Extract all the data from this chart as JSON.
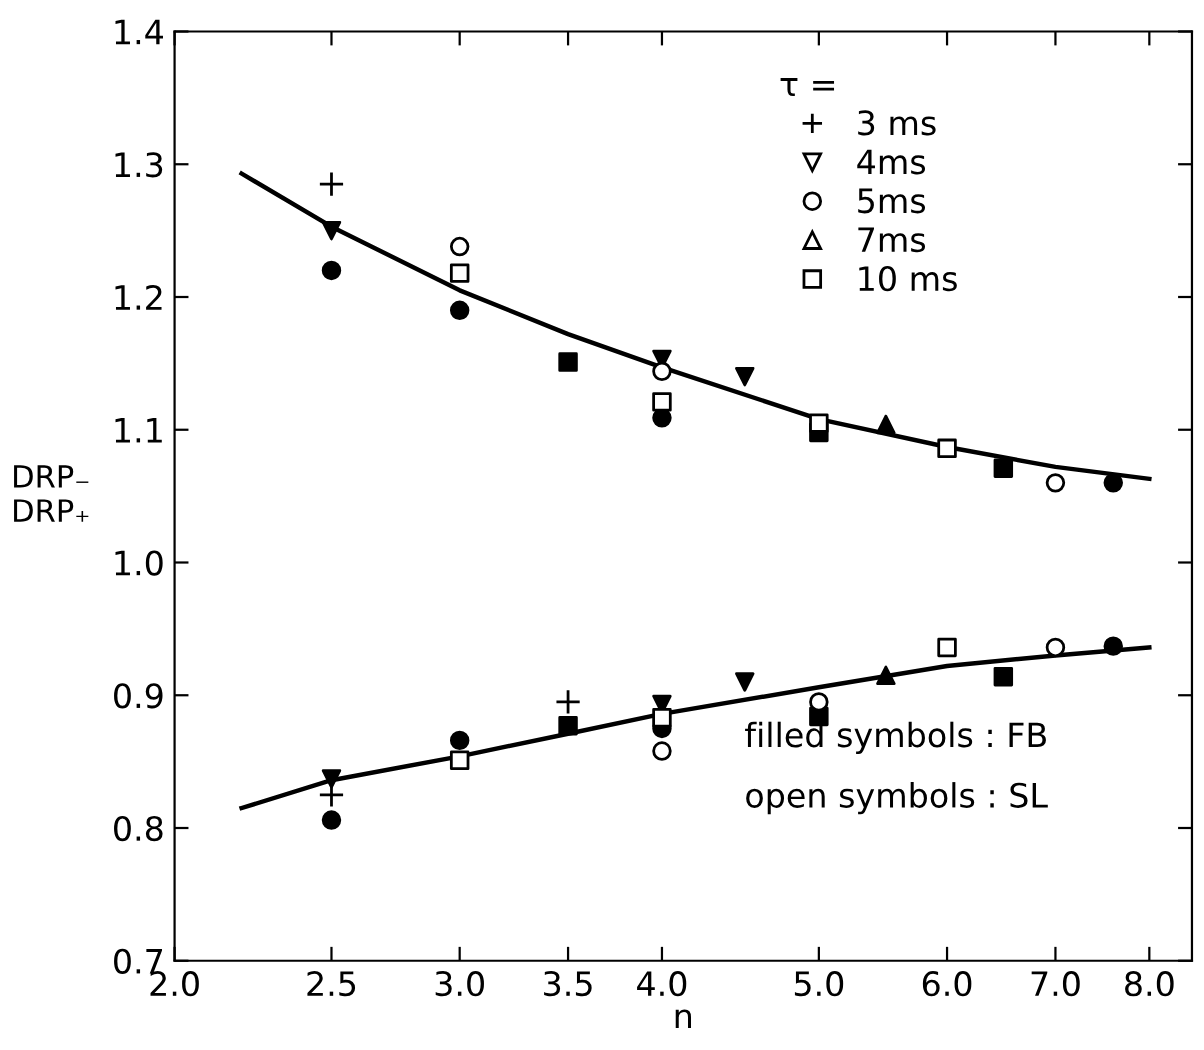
{
  "chart_data": {
    "type": "scatter",
    "xlabel": "n",
    "ylabel": "DRP₋\nDRP₊",
    "legend_title": "τ =",
    "log": "x",
    "xlim": [
      2.0,
      8.5
    ],
    "xticks": [
      {
        "value": 2,
        "label": "2.0"
      },
      2.5,
      {
        "value": 3,
        "label": "3.0"
      },
      3.5,
      {
        "value": 4,
        "label": "4.0"
      },
      {
        "value": 5,
        "label": "5.0"
      },
      {
        "value": 6,
        "label": "6.0"
      },
      {
        "value": 7,
        "label": "7.0"
      },
      {
        "value": 8,
        "label": "8.0"
      }
    ],
    "ylim": [
      0.7,
      1.4
    ],
    "yticks": [
      0.7,
      0.8,
      0.9,
      {
        "value": 1,
        "label": "1.0"
      },
      1.1,
      1.2,
      1.3,
      1.4
    ],
    "grid": false,
    "legend": "top right",
    "annotations": [
      "filled symbols : FB",
      "open symbols : SL"
    ],
    "series": [
      {
        "name": "3 ms",
        "marker": "plus",
        "color": "#000000",
        "x": [
          2.5,
          2.5,
          3.5
        ],
        "values": [
          1.285,
          0.825,
          0.895
        ]
      },
      {
        "name": "4ms",
        "marker": "triangle-down",
        "color": "#ffffff"
      },
      {
        "name": "5ms",
        "marker": "circle",
        "color": "#ffffff",
        "x": [
          3.0,
          4.0,
          7.0,
          4.0,
          5.0,
          7.0
        ],
        "values": [
          1.238,
          1.144,
          1.06,
          0.858,
          0.895,
          0.936
        ]
      },
      {
        "name": "7ms",
        "marker": "triangle",
        "color": "#ffffff"
      },
      {
        "name": "10 ms",
        "marker": "square",
        "color": "#ffffff",
        "x": [
          3.0,
          4.0,
          5.0,
          6.0,
          3.0,
          4.0,
          6.0
        ],
        "values": [
          1.218,
          1.121,
          1.105,
          1.086,
          0.851,
          0.883,
          0.936
        ]
      },
      {
        "marker": "triangle-down",
        "color": "#000000",
        "x": [
          2.5,
          4.0,
          4.5,
          2.5,
          4.0,
          4.5
        ],
        "values": [
          1.25,
          1.153,
          1.14,
          0.837,
          0.893,
          0.91
        ]
      },
      {
        "marker": "circle",
        "color": "#000000",
        "x": [
          2.5,
          3.0,
          4.0,
          7.6,
          2.5,
          3.0,
          4.0,
          7.6
        ],
        "values": [
          1.22,
          1.19,
          1.109,
          1.06,
          0.806,
          0.866,
          0.875,
          0.937
        ]
      },
      {
        "marker": "triangle",
        "color": "#000000",
        "x": [
          5.5,
          5.5
        ],
        "values": [
          1.104,
          0.915
        ]
      },
      {
        "marker": "square",
        "color": "#000000",
        "x": [
          3.5,
          5.0,
          6.5,
          3.5,
          5.0,
          6.5
        ],
        "values": [
          1.151,
          1.098,
          1.071,
          0.877,
          0.884,
          0.914
        ]
      },
      {
        "type": "line",
        "color": "#000000",
        "line_style": "solid",
        "marker": "none",
        "x": [
          2.2,
          2.5,
          3.0,
          3.5,
          4.0,
          5.0,
          6.0,
          7.0,
          8.0
        ],
        "values": [
          1.293,
          1.253,
          1.205,
          1.172,
          1.147,
          1.108,
          1.087,
          1.072,
          1.063
        ]
      },
      {
        "type": "line",
        "color": "#000000",
        "line_style": "solid",
        "marker": "none",
        "x": [
          2.2,
          2.5,
          3.0,
          3.5,
          4.0,
          5.0,
          6.0,
          7.0,
          8.0
        ],
        "values": [
          0.815,
          0.836,
          0.854,
          0.871,
          0.886,
          0.906,
          0.922,
          0.93,
          0.936
        ]
      }
    ]
  }
}
